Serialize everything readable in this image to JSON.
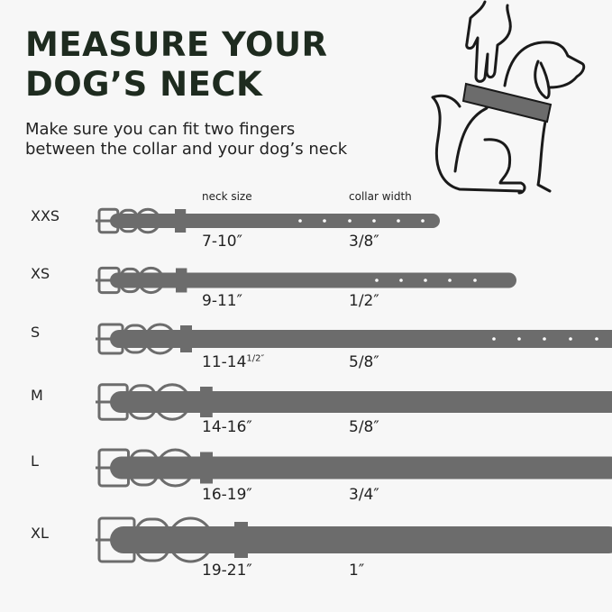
{
  "title_line1": "MEASURE YOUR",
  "title_line2": "DOG’S  NECK",
  "subtitle_line1": "Make sure you can fit two fingers",
  "subtitle_line2": "between the collar and your dog’s neck",
  "headers": {
    "neck_size": "neck size",
    "collar_width": "collar width"
  },
  "colors": {
    "title": "#1e2b1f",
    "collar": "#6c6c6c",
    "background": "#f7f7f7"
  },
  "illustration": "hand-measuring-dog-neck-with-ruler-icon",
  "sizes": [
    {
      "label": "XXS",
      "neck": "7-10″",
      "neck_sup": "",
      "width": "3/8″"
    },
    {
      "label": "XS",
      "neck": "9-11″",
      "neck_sup": "",
      "width": "1/2″"
    },
    {
      "label": "S",
      "neck": "11-14",
      "neck_sup": "1/2″",
      "width": "5/8″"
    },
    {
      "label": "M",
      "neck": "14-16″",
      "neck_sup": "",
      "width": "5/8″"
    },
    {
      "label": "L",
      "neck": "16-19″",
      "neck_sup": "",
      "width": "3/4″"
    },
    {
      "label": "XL",
      "neck": "19-21″",
      "neck_sup": "",
      "width": "1″"
    }
  ]
}
